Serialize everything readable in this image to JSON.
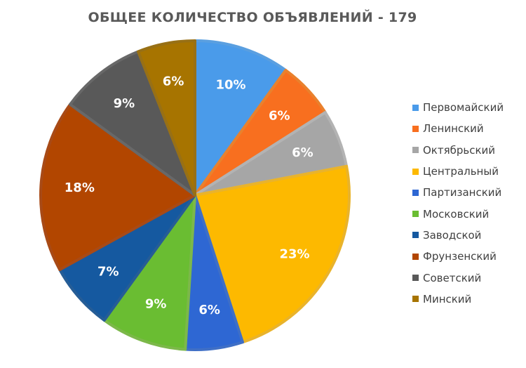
{
  "chart_data": {
    "type": "pie",
    "title": "ОБЩЕЕ КОЛИЧЕСТВО ОБЪЯВЛЕНИЙ - 179",
    "legend_position": "right",
    "slices": [
      {
        "name": "Первомайский",
        "value": 10,
        "label": "10%",
        "color": "#4a9bea",
        "border": "#5a9fe0"
      },
      {
        "name": "Ленинский",
        "value": 6,
        "label": "6%",
        "color": "#f86f1f",
        "border": "#e9812d"
      },
      {
        "name": "Октябрьский",
        "value": 6,
        "label": "6%",
        "color": "#a6a6a6",
        "border": "#b3b3b3"
      },
      {
        "name": "Центральный",
        "value": 23,
        "label": "23%",
        "color": "#fdb900",
        "border": "#e9b32b"
      },
      {
        "name": "Партизанский",
        "value": 6,
        "label": "6%",
        "color": "#2e67d3",
        "border": "#3f6fc6"
      },
      {
        "name": "Московский",
        "value": 9,
        "label": "9%",
        "color": "#6abd32",
        "border": "#7cb84a"
      },
      {
        "name": "Заводской",
        "value": 7,
        "label": "7%",
        "color": "#1559a0",
        "border": "#265d96"
      },
      {
        "name": "Фрунзенский",
        "value": 18,
        "label": "18%",
        "color": "#b24600",
        "border": "#a84a16"
      },
      {
        "name": "Советский",
        "value": 9,
        "label": "9%",
        "color": "#595959",
        "border": "#686868"
      },
      {
        "name": "Минский",
        "value": 6,
        "label": "6%",
        "color": "#a77400",
        "border": "#987015"
      }
    ]
  }
}
